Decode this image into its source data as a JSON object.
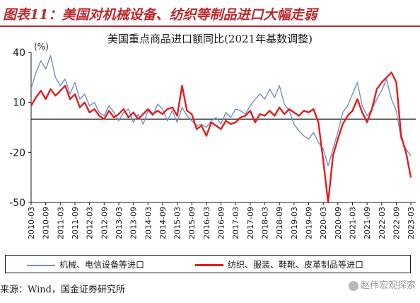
{
  "header": {
    "title": "图表11：美国对机械设备、纺织等制品进口大幅走弱"
  },
  "chart_data": {
    "type": "line",
    "title": "美国重点商品进口额同比(2021年基数调整)",
    "unit_label": "(%)",
    "xlabel": "",
    "ylabel": "",
    "ylim": [
      -50,
      40
    ],
    "yticks": [
      40,
      10,
      -20,
      -50
    ],
    "xticks": [
      "2010-03",
      "2010-09",
      "2011-03",
      "2011-09",
      "2012-03",
      "2012-09",
      "2013-03",
      "2013-09",
      "2014-03",
      "2014-09",
      "2015-03",
      "2015-09",
      "2016-03",
      "2016-09",
      "2017-03",
      "2017-09",
      "2018-03",
      "2018-09",
      "2019-03",
      "2019-09",
      "2020-03",
      "2020-09",
      "2021-03",
      "2021-09",
      "2022-03",
      "2022-09",
      "2023-03"
    ],
    "grid": false,
    "zero_line": true,
    "series": [
      {
        "name": "机械、电信设备等进口",
        "color": "#6f8fc4",
        "points": [
          [
            "2010-03",
            18
          ],
          [
            "2010-05",
            28
          ],
          [
            "2010-07",
            35
          ],
          [
            "2010-09",
            30
          ],
          [
            "2010-11",
            38
          ],
          [
            "2011-01",
            25
          ],
          [
            "2011-03",
            20
          ],
          [
            "2011-05",
            24
          ],
          [
            "2011-07",
            15
          ],
          [
            "2011-09",
            22
          ],
          [
            "2011-11",
            12
          ],
          [
            "2012-01",
            15
          ],
          [
            "2012-03",
            8
          ],
          [
            "2012-05",
            10
          ],
          [
            "2012-07",
            4
          ],
          [
            "2012-09",
            2
          ],
          [
            "2012-11",
            8
          ],
          [
            "2013-01",
            4
          ],
          [
            "2013-03",
            -1
          ],
          [
            "2013-05",
            4
          ],
          [
            "2013-07",
            6
          ],
          [
            "2013-09",
            -2
          ],
          [
            "2013-11",
            3
          ],
          [
            "2014-01",
            -3
          ],
          [
            "2014-03",
            5
          ],
          [
            "2014-05",
            2
          ],
          [
            "2014-07",
            9
          ],
          [
            "2014-09",
            6
          ],
          [
            "2014-11",
            -1
          ],
          [
            "2015-01",
            5
          ],
          [
            "2015-03",
            -2
          ],
          [
            "2015-05",
            7
          ],
          [
            "2015-07",
            2
          ],
          [
            "2015-09",
            -1
          ],
          [
            "2015-11",
            -4
          ],
          [
            "2016-01",
            -3
          ],
          [
            "2016-03",
            -5
          ],
          [
            "2016-05",
            -1
          ],
          [
            "2016-07",
            1
          ],
          [
            "2016-09",
            -3
          ],
          [
            "2016-11",
            4
          ],
          [
            "2017-01",
            1
          ],
          [
            "2017-03",
            6
          ],
          [
            "2017-05",
            5
          ],
          [
            "2017-07",
            3
          ],
          [
            "2017-09",
            8
          ],
          [
            "2017-11",
            12
          ],
          [
            "2018-01",
            15
          ],
          [
            "2018-03",
            12
          ],
          [
            "2018-05",
            18
          ],
          [
            "2018-07",
            13
          ],
          [
            "2018-09",
            20
          ],
          [
            "2018-11",
            9
          ],
          [
            "2019-01",
            5
          ],
          [
            "2019-03",
            -3
          ],
          [
            "2019-05",
            -7
          ],
          [
            "2019-07",
            -10
          ],
          [
            "2019-09",
            -12
          ],
          [
            "2019-11",
            -8
          ],
          [
            "2020-01",
            -14
          ],
          [
            "2020-03",
            -18
          ],
          [
            "2020-05",
            -28
          ],
          [
            "2020-07",
            -18
          ],
          [
            "2020-09",
            -8
          ],
          [
            "2020-11",
            4
          ],
          [
            "2021-01",
            8
          ],
          [
            "2021-03",
            15
          ],
          [
            "2021-05",
            22
          ],
          [
            "2021-07",
            8
          ],
          [
            "2021-09",
            2
          ],
          [
            "2021-11",
            6
          ],
          [
            "2022-01",
            12
          ],
          [
            "2022-03",
            17
          ],
          [
            "2022-05",
            24
          ],
          [
            "2022-07",
            12
          ],
          [
            "2022-09",
            5
          ],
          [
            "2022-11",
            -12
          ],
          [
            "2023-01",
            -18
          ],
          [
            "2023-03",
            -22
          ]
        ]
      },
      {
        "name": "纺织、服装、鞋靴、皮革制品等进口",
        "color": "#e51c1c",
        "points": [
          [
            "2010-03",
            8
          ],
          [
            "2010-05",
            13
          ],
          [
            "2010-07",
            17
          ],
          [
            "2010-09",
            12
          ],
          [
            "2010-11",
            18
          ],
          [
            "2011-01",
            14
          ],
          [
            "2011-03",
            17
          ],
          [
            "2011-05",
            20
          ],
          [
            "2011-07",
            12
          ],
          [
            "2011-09",
            15
          ],
          [
            "2011-11",
            7
          ],
          [
            "2012-01",
            10
          ],
          [
            "2012-03",
            4
          ],
          [
            "2012-05",
            6
          ],
          [
            "2012-07",
            2
          ],
          [
            "2012-09",
            0
          ],
          [
            "2012-11",
            5
          ],
          [
            "2013-01",
            1
          ],
          [
            "2013-03",
            3
          ],
          [
            "2013-05",
            6
          ],
          [
            "2013-07",
            1
          ],
          [
            "2013-09",
            4
          ],
          [
            "2013-11",
            0
          ],
          [
            "2014-01",
            3
          ],
          [
            "2014-03",
            6
          ],
          [
            "2014-05",
            3
          ],
          [
            "2014-07",
            5
          ],
          [
            "2014-09",
            3
          ],
          [
            "2014-11",
            6
          ],
          [
            "2015-01",
            7
          ],
          [
            "2015-03",
            2
          ],
          [
            "2015-05",
            20
          ],
          [
            "2015-07",
            5
          ],
          [
            "2015-09",
            3
          ],
          [
            "2015-11",
            -6
          ],
          [
            "2016-01",
            -4
          ],
          [
            "2016-03",
            -10
          ],
          [
            "2016-05",
            -2
          ],
          [
            "2016-07",
            -4
          ],
          [
            "2016-09",
            -6
          ],
          [
            "2016-11",
            -1
          ],
          [
            "2017-01",
            -3
          ],
          [
            "2017-03",
            -2
          ],
          [
            "2017-05",
            1
          ],
          [
            "2017-07",
            2
          ],
          [
            "2017-09",
            5
          ],
          [
            "2017-11",
            -2
          ],
          [
            "2018-01",
            3
          ],
          [
            "2018-03",
            2
          ],
          [
            "2018-05",
            5
          ],
          [
            "2018-07",
            2
          ],
          [
            "2018-09",
            7
          ],
          [
            "2018-11",
            3
          ],
          [
            "2019-01",
            6
          ],
          [
            "2019-03",
            4
          ],
          [
            "2019-05",
            2
          ],
          [
            "2019-07",
            5
          ],
          [
            "2019-09",
            4
          ],
          [
            "2019-11",
            6
          ],
          [
            "2020-01",
            -2
          ],
          [
            "2020-03",
            -25
          ],
          [
            "2020-05",
            -50
          ],
          [
            "2020-07",
            -22
          ],
          [
            "2020-09",
            -12
          ],
          [
            "2020-11",
            -3
          ],
          [
            "2021-01",
            2
          ],
          [
            "2021-03",
            5
          ],
          [
            "2021-05",
            12
          ],
          [
            "2021-07",
            4
          ],
          [
            "2021-09",
            -2
          ],
          [
            "2021-11",
            6
          ],
          [
            "2022-01",
            18
          ],
          [
            "2022-03",
            22
          ],
          [
            "2022-05",
            25
          ],
          [
            "2022-07",
            28
          ],
          [
            "2022-09",
            22
          ],
          [
            "2022-11",
            -10
          ],
          [
            "2023-01",
            -20
          ],
          [
            "2023-03",
            -35
          ]
        ]
      }
    ]
  },
  "legend": {
    "items": [
      {
        "label": "机械、电信设备等进口",
        "color": "#6f8fc4"
      },
      {
        "label": "纺织、服装、鞋靴、皮革制品等进口",
        "color": "#e51c1c"
      }
    ]
  },
  "source": "来源：Wind，国金证券研究所",
  "watermark": "赵伟宏观探索"
}
